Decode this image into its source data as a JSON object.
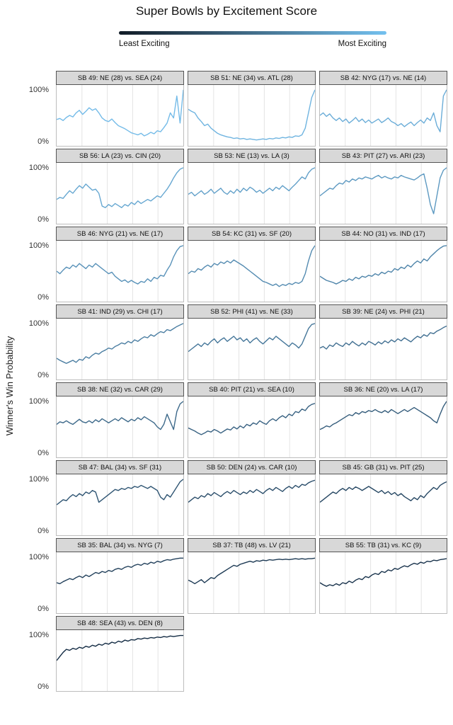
{
  "title": "Super Bowls by Excitement Score",
  "legend": {
    "left_label": "Least Exciting",
    "right_label": "Most Exciting",
    "gradient_start": "#111b26",
    "gradient_end": "#74c1ef"
  },
  "y_axis": {
    "title": "Winner's Win Probability",
    "tick_top": "100%",
    "tick_bottom": "0%"
  },
  "chart_data": {
    "type": "line",
    "columns": 3,
    "ylim": [
      0,
      100
    ],
    "x_axis": "game time from kickoff to final (unlabeled)",
    "grid": "vertical quarter gridlines only",
    "facets": [
      {
        "id": "sb-49",
        "title": "SB 49: NE (28) vs. SEA (24)",
        "color": "#74bbe8",
        "values": [
          42,
          44,
          40,
          46,
          50,
          47,
          55,
          60,
          52,
          58,
          65,
          60,
          63,
          55,
          45,
          40,
          38,
          43,
          36,
          30,
          27,
          24,
          20,
          16,
          14,
          12,
          15,
          10,
          13,
          17,
          14,
          20,
          18,
          26,
          35,
          55,
          45,
          88,
          35,
          100
        ]
      },
      {
        "id": "sb-51",
        "title": "SB 51: NE (34) vs. ATL (28)",
        "color": "#6fb4e0",
        "values": [
          62,
          58,
          55,
          45,
          38,
          30,
          33,
          25,
          20,
          15,
          12,
          10,
          8,
          7,
          5,
          6,
          4,
          5,
          3,
          4,
          3,
          2,
          3,
          4,
          3,
          5,
          4,
          6,
          5,
          7,
          6,
          8,
          7,
          10,
          9,
          12,
          25,
          55,
          85,
          100
        ]
      },
      {
        "id": "sb-42",
        "title": "SB 42: NYG (17) vs. NE (14)",
        "color": "#6badd8",
        "values": [
          50,
          55,
          48,
          53,
          45,
          40,
          45,
          38,
          43,
          35,
          40,
          46,
          38,
          43,
          36,
          41,
          35,
          39,
          43,
          36,
          40,
          45,
          38,
          35,
          30,
          34,
          28,
          33,
          37,
          30,
          36,
          41,
          35,
          45,
          40,
          55,
          30,
          18,
          88,
          100
        ]
      },
      {
        "id": "sb-56",
        "title": "SB 56: LA (23) vs. CIN (20)",
        "color": "#66a7d1",
        "values": [
          38,
          42,
          40,
          48,
          55,
          50,
          58,
          65,
          60,
          68,
          62,
          56,
          58,
          50,
          25,
          22,
          28,
          24,
          30,
          26,
          22,
          28,
          25,
          32,
          28,
          35,
          30,
          34,
          38,
          35,
          40,
          45,
          42,
          50,
          58,
          68,
          80,
          90,
          97,
          100
        ]
      },
      {
        "id": "sb-53",
        "title": "SB 53: NE (13) vs. LA (3)",
        "color": "#62a0c9",
        "values": [
          48,
          52,
          45,
          50,
          55,
          48,
          52,
          58,
          50,
          55,
          60,
          52,
          48,
          55,
          50,
          58,
          52,
          60,
          55,
          62,
          58,
          52,
          56,
          50,
          55,
          60,
          55,
          62,
          58,
          65,
          60,
          55,
          62,
          68,
          75,
          82,
          78,
          90,
          97,
          100
        ]
      },
      {
        "id": "sb-43",
        "title": "SB 43: PIT (27) vs. ARI (23)",
        "color": "#5d99c1",
        "values": [
          45,
          50,
          55,
          60,
          58,
          65,
          70,
          68,
          75,
          72,
          78,
          75,
          80,
          78,
          82,
          80,
          78,
          82,
          85,
          80,
          83,
          80,
          78,
          82,
          80,
          85,
          82,
          80,
          78,
          76,
          80,
          85,
          88,
          60,
          28,
          10,
          45,
          80,
          95,
          100
        ]
      },
      {
        "id": "sb-46",
        "title": "SB 46: NYG (21) vs. NE (17)",
        "color": "#5992b9",
        "values": [
          50,
          45,
          52,
          58,
          55,
          62,
          58,
          65,
          60,
          55,
          62,
          58,
          65,
          60,
          55,
          50,
          45,
          48,
          40,
          35,
          30,
          33,
          28,
          32,
          28,
          25,
          30,
          28,
          35,
          30,
          38,
          35,
          42,
          40,
          52,
          62,
          78,
          90,
          98,
          100
        ]
      },
      {
        "id": "sb-54",
        "title": "SB 54: KC (31) vs. SF (20)",
        "color": "#548bb1",
        "values": [
          45,
          50,
          48,
          55,
          52,
          58,
          62,
          58,
          65,
          62,
          68,
          65,
          70,
          66,
          72,
          68,
          64,
          60,
          55,
          50,
          45,
          40,
          35,
          30,
          28,
          25,
          22,
          25,
          20,
          24,
          22,
          26,
          24,
          28,
          26,
          30,
          45,
          70,
          90,
          100
        ]
      },
      {
        "id": "sb-44",
        "title": "SB 44: NO (31) vs. IND (17)",
        "color": "#4f85aa",
        "values": [
          40,
          36,
          32,
          30,
          28,
          25,
          28,
          32,
          30,
          35,
          32,
          38,
          35,
          40,
          38,
          42,
          40,
          45,
          42,
          48,
          45,
          50,
          48,
          55,
          52,
          58,
          55,
          62,
          58,
          65,
          70,
          66,
          74,
          70,
          78,
          84,
          90,
          95,
          99,
          100
        ]
      },
      {
        "id": "sb-41",
        "title": "SB 41: IND (29) vs. CHI (17)",
        "color": "#4b7ea2",
        "values": [
          32,
          28,
          25,
          22,
          25,
          28,
          24,
          30,
          28,
          35,
          32,
          38,
          42,
          40,
          45,
          48,
          52,
          50,
          55,
          58,
          62,
          60,
          65,
          62,
          68,
          65,
          70,
          74,
          72,
          78,
          75,
          80,
          84,
          82,
          88,
          86,
          90,
          94,
          97,
          100
        ]
      },
      {
        "id": "sb-52",
        "title": "SB 52: PHI (41) vs. NE (33)",
        "color": "#46779a",
        "values": [
          45,
          50,
          55,
          60,
          55,
          62,
          58,
          65,
          70,
          62,
          68,
          72,
          65,
          70,
          75,
          68,
          72,
          65,
          70,
          62,
          68,
          72,
          65,
          60,
          66,
          72,
          68,
          75,
          70,
          65,
          60,
          55,
          62,
          58,
          52,
          60,
          75,
          90,
          98,
          100
        ]
      },
      {
        "id": "sb-39",
        "title": "SB 39: NE (24) vs. PHI (21)",
        "color": "#427092",
        "values": [
          52,
          55,
          50,
          58,
          55,
          62,
          58,
          55,
          62,
          58,
          65,
          60,
          56,
          62,
          58,
          65,
          62,
          58,
          64,
          60,
          66,
          62,
          68,
          64,
          70,
          66,
          72,
          68,
          64,
          70,
          75,
          72,
          78,
          75,
          82,
          80,
          85,
          88,
          92,
          95
        ]
      },
      {
        "id": "sb-38",
        "title": "SB 38: NE (32) vs. CAR (29)",
        "color": "#3d698a",
        "values": [
          55,
          60,
          58,
          62,
          58,
          55,
          60,
          65,
          60,
          58,
          62,
          58,
          64,
          60,
          66,
          62,
          58,
          62,
          66,
          62,
          68,
          64,
          60,
          65,
          62,
          68,
          64,
          70,
          66,
          62,
          58,
          50,
          45,
          55,
          75,
          60,
          45,
          80,
          95,
          100
        ]
      },
      {
        "id": "sb-40",
        "title": "SB 40: PIT (21) vs. SEA (10)",
        "color": "#396282",
        "values": [
          48,
          45,
          42,
          38,
          35,
          38,
          42,
          40,
          45,
          42,
          38,
          42,
          46,
          44,
          50,
          46,
          52,
          48,
          55,
          52,
          58,
          55,
          62,
          58,
          55,
          62,
          66,
          62,
          68,
          72,
          68,
          75,
          72,
          80,
          78,
          85,
          82,
          90,
          94,
          96
        ]
      },
      {
        "id": "sb-36",
        "title": "SB 36: NE (20) vs. LA (17)",
        "color": "#345c7b",
        "values": [
          45,
          48,
          52,
          50,
          55,
          58,
          62,
          66,
          70,
          74,
          72,
          78,
          75,
          80,
          78,
          82,
          80,
          84,
          80,
          78,
          82,
          78,
          84,
          80,
          76,
          80,
          84,
          80,
          84,
          88,
          84,
          80,
          76,
          72,
          68,
          62,
          58,
          75,
          90,
          100
        ]
      },
      {
        "id": "sb-47",
        "title": "SB 47: BAL (34) vs. SF (31)",
        "color": "#2f5573",
        "values": [
          50,
          55,
          60,
          58,
          65,
          70,
          66,
          72,
          68,
          75,
          72,
          78,
          75,
          55,
          60,
          65,
          70,
          75,
          80,
          78,
          82,
          80,
          84,
          82,
          86,
          84,
          88,
          85,
          82,
          86,
          82,
          78,
          65,
          60,
          70,
          65,
          75,
          85,
          95,
          100
        ]
      },
      {
        "id": "sb-50",
        "title": "SB 50: DEN (24) vs. CAR (10)",
        "color": "#2b4e6b",
        "values": [
          55,
          60,
          65,
          62,
          68,
          65,
          72,
          68,
          74,
          70,
          66,
          72,
          76,
          72,
          78,
          74,
          70,
          75,
          72,
          78,
          74,
          80,
          76,
          72,
          78,
          82,
          78,
          84,
          80,
          76,
          82,
          86,
          82,
          88,
          84,
          90,
          88,
          93,
          96,
          98
        ]
      },
      {
        "id": "sb-45",
        "title": "SB 45: GB (31) vs. PIT (25)",
        "color": "#264763",
        "values": [
          55,
          60,
          65,
          70,
          75,
          72,
          78,
          82,
          78,
          84,
          80,
          85,
          82,
          78,
          82,
          86,
          82,
          78,
          74,
          78,
          72,
          76,
          70,
          74,
          68,
          72,
          66,
          62,
          58,
          64,
          60,
          68,
          64,
          72,
          78,
          84,
          80,
          88,
          92,
          95
        ]
      },
      {
        "id": "sb-35",
        "title": "SB 35: BAL (34) vs. NYG (7)",
        "color": "#22405b",
        "values": [
          50,
          48,
          52,
          55,
          58,
          56,
          60,
          63,
          60,
          65,
          62,
          66,
          70,
          68,
          72,
          70,
          74,
          72,
          76,
          78,
          76,
          80,
          82,
          80,
          84,
          86,
          84,
          88,
          86,
          90,
          88,
          92,
          90,
          93,
          95,
          94,
          96,
          97,
          98,
          98
        ]
      },
      {
        "id": "sb-37",
        "title": "SB 37: TB (48) vs. LV (21)",
        "color": "#1d3a54",
        "values": [
          55,
          52,
          48,
          52,
          56,
          50,
          55,
          60,
          58,
          64,
          68,
          72,
          76,
          80,
          84,
          82,
          86,
          88,
          90,
          92,
          90,
          93,
          92,
          94,
          93,
          95,
          94,
          95,
          96,
          95,
          96,
          95,
          96,
          97,
          96,
          97,
          96,
          97,
          97,
          98
        ]
      },
      {
        "id": "sb-55",
        "title": "SB 55: TB (31) vs. KC (9)",
        "color": "#19334c",
        "values": [
          50,
          46,
          43,
          46,
          44,
          48,
          45,
          50,
          48,
          53,
          50,
          55,
          58,
          56,
          62,
          60,
          65,
          68,
          66,
          72,
          70,
          75,
          73,
          78,
          76,
          80,
          83,
          81,
          85,
          88,
          86,
          90,
          88,
          92,
          91,
          94,
          93,
          95,
          96,
          97
        ]
      },
      {
        "id": "sb-48",
        "title": "SB 48: SEA (43) vs. DEN (8)",
        "color": "#142c44",
        "values": [
          50,
          58,
          66,
          72,
          70,
          74,
          72,
          76,
          74,
          78,
          76,
          80,
          78,
          82,
          80,
          84,
          82,
          86,
          84,
          88,
          86,
          90,
          88,
          91,
          90,
          93,
          92,
          94,
          93,
          95,
          94,
          96,
          95,
          97,
          96,
          98,
          97,
          98,
          99,
          99
        ]
      }
    ]
  }
}
